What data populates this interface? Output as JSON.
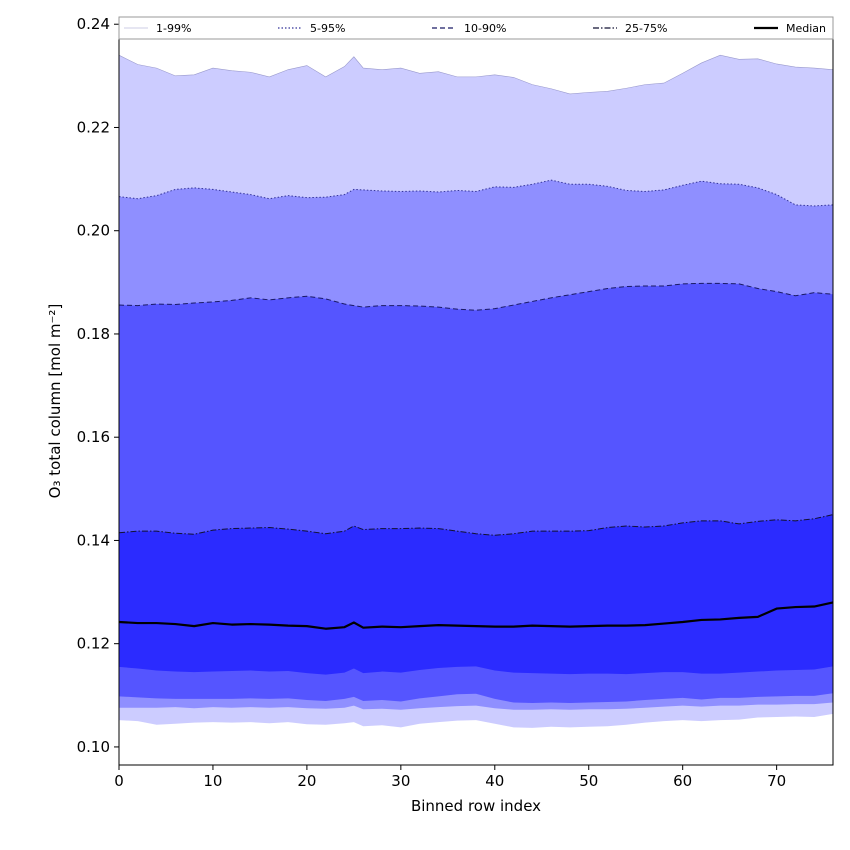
{
  "chart_data": {
    "type": "area",
    "xlabel": "Binned row index",
    "ylabel": "O₃ total column [mol m⁻²]",
    "xlim": [
      0,
      76
    ],
    "ylim": [
      0.0965,
      0.2414
    ],
    "x_ticks": [
      0,
      10,
      20,
      30,
      40,
      50,
      60,
      70
    ],
    "y_ticks": [
      0.1,
      0.12,
      0.14,
      0.16,
      0.18,
      0.2,
      0.22,
      0.24
    ],
    "y_tick_labels": [
      "0.10",
      "0.12",
      "0.14",
      "0.16",
      "0.18",
      "0.20",
      "0.22",
      "0.24"
    ],
    "grid": false,
    "legend_position": "top",
    "x": [
      0,
      2,
      4,
      6,
      8,
      10,
      12,
      14,
      16,
      18,
      20,
      22,
      24,
      25,
      26,
      28,
      30,
      32,
      34,
      36,
      38,
      40,
      42,
      44,
      46,
      48,
      50,
      52,
      54,
      56,
      58,
      60,
      62,
      64,
      66,
      68,
      70,
      72,
      74,
      76
    ],
    "bands": [
      {
        "name": "1-99%",
        "color": "#ccccff",
        "line_style": "solid",
        "lower": [
          0.1052,
          0.105,
          0.1043,
          0.1045,
          0.1047,
          0.1048,
          0.1047,
          0.1048,
          0.1046,
          0.1048,
          0.1044,
          0.1043,
          0.1046,
          0.1048,
          0.104,
          0.1042,
          0.1038,
          0.1045,
          0.1048,
          0.1051,
          0.1052,
          0.1045,
          0.1038,
          0.1037,
          0.1039,
          0.1038,
          0.1039,
          0.104,
          0.1043,
          0.1047,
          0.105,
          0.1052,
          0.105,
          0.1052,
          0.1053,
          0.1057,
          0.1058,
          0.1059,
          0.1058,
          0.1064
        ],
        "upper": [
          0.234,
          0.2322,
          0.2315,
          0.23,
          0.2302,
          0.2315,
          0.231,
          0.2307,
          0.2298,
          0.2312,
          0.232,
          0.2298,
          0.2318,
          0.2337,
          0.2315,
          0.2312,
          0.2315,
          0.2305,
          0.2308,
          0.2298,
          0.2298,
          0.2302,
          0.2297,
          0.2283,
          0.2275,
          0.2265,
          0.2268,
          0.227,
          0.2276,
          0.2283,
          0.2286,
          0.2305,
          0.2325,
          0.234,
          0.2332,
          0.2333,
          0.2323,
          0.2317,
          0.2315,
          0.2312
        ]
      },
      {
        "name": "5-95%",
        "color": "#8f8fff",
        "line_style": "dotted",
        "lower": [
          0.1076,
          0.1076,
          0.1076,
          0.1077,
          0.1075,
          0.1077,
          0.1076,
          0.1077,
          0.1076,
          0.1077,
          0.1075,
          0.1074,
          0.1076,
          0.108,
          0.1073,
          0.1074,
          0.1072,
          0.1075,
          0.1077,
          0.1079,
          0.108,
          0.1075,
          0.1072,
          0.1072,
          0.1073,
          0.1072,
          0.1073,
          0.1073,
          0.1074,
          0.1076,
          0.1078,
          0.108,
          0.1078,
          0.108,
          0.108,
          0.1082,
          0.1082,
          0.1083,
          0.1083,
          0.1086
        ],
        "upper": [
          0.2066,
          0.2062,
          0.2068,
          0.208,
          0.2083,
          0.208,
          0.2075,
          0.207,
          0.2062,
          0.2068,
          0.2064,
          0.2065,
          0.207,
          0.208,
          0.2079,
          0.2077,
          0.2076,
          0.2077,
          0.2075,
          0.2078,
          0.2076,
          0.2085,
          0.2084,
          0.209,
          0.2098,
          0.209,
          0.209,
          0.2086,
          0.2078,
          0.2076,
          0.2079,
          0.2088,
          0.2096,
          0.2091,
          0.209,
          0.2083,
          0.207,
          0.205,
          0.2048,
          0.205
        ]
      },
      {
        "name": "10-90%",
        "color": "#5555ff",
        "line_style": "dashed",
        "lower": [
          0.1098,
          0.1096,
          0.1094,
          0.1093,
          0.1093,
          0.1093,
          0.1093,
          0.1094,
          0.1093,
          0.1094,
          0.1091,
          0.1089,
          0.1093,
          0.1097,
          0.1089,
          0.1091,
          0.1088,
          0.1094,
          0.1098,
          0.1102,
          0.1103,
          0.1093,
          0.1086,
          0.1085,
          0.1086,
          0.1085,
          0.1086,
          0.1087,
          0.1088,
          0.1091,
          0.1093,
          0.1095,
          0.1092,
          0.1095,
          0.1095,
          0.1097,
          0.1098,
          0.1099,
          0.1099,
          0.1104
        ],
        "upper": [
          0.1856,
          0.1855,
          0.1858,
          0.1857,
          0.186,
          0.1862,
          0.1865,
          0.187,
          0.1866,
          0.187,
          0.1873,
          0.1868,
          0.1858,
          0.1855,
          0.1852,
          0.1855,
          0.1855,
          0.1854,
          0.1852,
          0.1848,
          0.1846,
          0.1849,
          0.1856,
          0.1863,
          0.187,
          0.1876,
          0.1882,
          0.1888,
          0.1892,
          0.1893,
          0.1893,
          0.1897,
          0.1898,
          0.1898,
          0.1897,
          0.1888,
          0.1882,
          0.1874,
          0.188,
          0.1877
        ]
      },
      {
        "name": "25-75%",
        "color": "#2b2bff",
        "line_style": "dashdot",
        "lower": [
          0.1155,
          0.1152,
          0.1148,
          0.1146,
          0.1145,
          0.1146,
          0.1147,
          0.1148,
          0.1146,
          0.1147,
          0.1143,
          0.114,
          0.1144,
          0.1152,
          0.1143,
          0.1146,
          0.1144,
          0.1149,
          0.1153,
          0.1155,
          0.1156,
          0.1148,
          0.1144,
          0.1143,
          0.1142,
          0.1141,
          0.1142,
          0.1142,
          0.1141,
          0.1143,
          0.1145,
          0.1145,
          0.1142,
          0.1142,
          0.1144,
          0.1146,
          0.1148,
          0.1149,
          0.115,
          0.1156
        ],
        "upper": [
          0.1415,
          0.1418,
          0.1418,
          0.1414,
          0.1412,
          0.142,
          0.1423,
          0.1424,
          0.1425,
          0.1422,
          0.1418,
          0.1413,
          0.1418,
          0.1428,
          0.1421,
          0.1423,
          0.1423,
          0.1424,
          0.1423,
          0.1418,
          0.1413,
          0.141,
          0.1413,
          0.1418,
          0.1418,
          0.1418,
          0.1419,
          0.1425,
          0.1428,
          0.1426,
          0.1428,
          0.1434,
          0.1438,
          0.1438,
          0.1432,
          0.1437,
          0.144,
          0.1438,
          0.1442,
          0.145
        ]
      }
    ],
    "series": [
      {
        "name": "Median",
        "color": "#000000",
        "values": [
          0.1242,
          0.124,
          0.124,
          0.1238,
          0.1234,
          0.124,
          0.1237,
          0.1238,
          0.1237,
          0.1235,
          0.1234,
          0.1229,
          0.1232,
          0.1241,
          0.1231,
          0.1233,
          0.1232,
          0.1234,
          0.1236,
          0.1235,
          0.1234,
          0.1233,
          0.1233,
          0.1235,
          0.1234,
          0.1233,
          0.1234,
          0.1235,
          0.1235,
          0.1236,
          0.1239,
          0.1242,
          0.1246,
          0.1247,
          0.125,
          0.1252,
          0.1268,
          0.1271,
          0.1272,
          0.128
        ]
      }
    ],
    "legend": [
      {
        "label": "1-99%",
        "color": "#ccccff",
        "style": "solid"
      },
      {
        "label": "5-95%",
        "color": "#8f8fff",
        "style": "dotted"
      },
      {
        "label": "10-90%",
        "color": "#5555ff",
        "style": "dashed"
      },
      {
        "label": "25-75%",
        "color": "#2b2bff",
        "style": "dashdot"
      },
      {
        "label": "Median",
        "color": "#000000",
        "style": "solid-thick"
      }
    ]
  }
}
